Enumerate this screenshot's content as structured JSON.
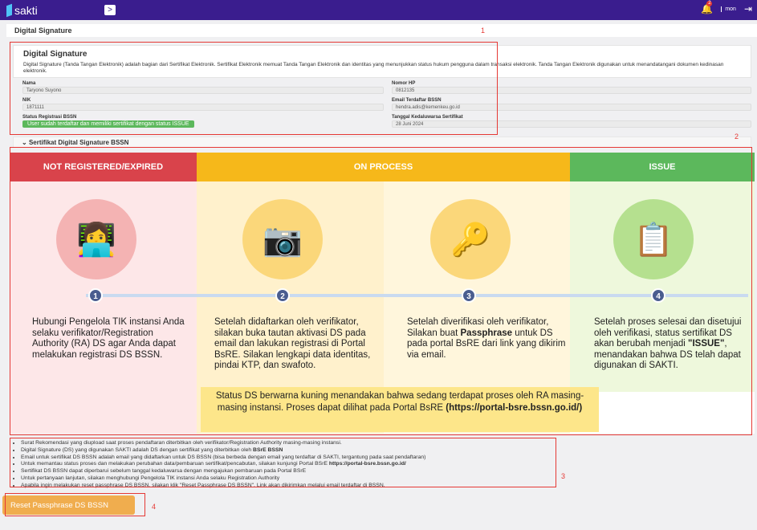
{
  "header": {
    "logo": "sakti",
    "toggle": ">",
    "notif_count": "2",
    "mon": "mon"
  },
  "breadcrumb": "Digital Signature",
  "card": {
    "title": "Digital Signature",
    "desc": "Digital Signature (Tanda Tangan Elektronik) adalah bagian dari Sertifikat Elektronik. Sertifikat Elektronik memuat Tanda Tangan Elektronik dan identitas yang menunjukkan status hukum pengguna dalam transaksi elektronik. Tanda Tangan Elektronik digunakan untuk menandatangani dokumen kedinasan elektronik."
  },
  "fields": {
    "nama": {
      "label": "Nama",
      "value": "Taryono Suyono"
    },
    "nik": {
      "label": "NIK",
      "value": "1871111"
    },
    "status": {
      "label": "Status Registrasi BSSN",
      "value": "User sudah terdaftar dan memiliki sertifikat dengan status ISSUE"
    },
    "hp": {
      "label": "Nomor HP",
      "value": "0812135"
    },
    "email": {
      "label": "Email Terdaftar BSSN",
      "value": "hendra.adis@kemenkeu.go.id"
    },
    "expiry": {
      "label": "Tanggal Kedaluwarsa Sertifikat",
      "value": "28 Juni 2024"
    }
  },
  "section_title": "Sertifikat Digital Signature BSSN",
  "info": {
    "headers": [
      "NOT REGISTERED/EXPIRED",
      "ON PROCESS",
      "ISSUE"
    ],
    "colors": {
      "red": "#d9434b",
      "yellow": "#f6b81a",
      "green": "#5cb85c"
    },
    "steps": [
      {
        "num": "1",
        "text": "Hubungi Pengelola TIK instansi Anda selaku verifikator/Registration Authority (RA) DS agar Anda dapat melakukan registrasi DS BSSN."
      },
      {
        "num": "2",
        "text": "Setelah didaftarkan oleh verifikator, silakan buka tautan aktivasi DS pada email dan lakukan registrasi di Portal BsRE. Silakan lengkapi data identitas, pindai KTP, dan swafoto."
      },
      {
        "num": "3",
        "text_a": "Setelah diverifikasi oleh verifikator, Silakan buat ",
        "text_b": "Passphrase",
        "text_c": " untuk DS pada portal BsRE dari link yang dikirim via email."
      },
      {
        "num": "4",
        "text_a": "Setelah proses selesai dan disetujui oleh verifikasi, status sertifikat DS akan berubah menjadi ",
        "text_b": "\"ISSUE\"",
        "text_c": ", menandakan bahwa DS telah dapat digunakan di SAKTI."
      }
    ],
    "note_a": "Status DS berwarna kuning menandakan bahwa sedang terdapat proses oleh RA masing-masing instansi. Proses dapat dilihat pada Portal BsRE ",
    "note_b": "(https://portal-bsre.bssn.go.id/)"
  },
  "notes": [
    {
      "a": "Surat Rekomendasi yang diupload saat proses pendaftaran diterbitkan oleh verifikator/Registration Authority masing-masing instansi.",
      "b": ""
    },
    {
      "a": "Digital Signature (DS) yang digunakan SAKTI adalah DS dengan sertifikat yang diterbitkan oleh ",
      "b": "BSrE BSSN"
    },
    {
      "a": "Email untuk sertifikat DS BSSN adalah email yang didaftarkan untuk DS BSSN (bisa berbeda dengan email yang terdaftar di SAKTI, tergantung pada saat pendaftaran)",
      "b": ""
    },
    {
      "a": "Untuk memantau status proses dan melakukan perubahan data/pembaruan sertifikat/pencabutan, silakan kunjungi Portal BSrE ",
      "b": "https://portal-bsre.bssn.go.id/"
    },
    {
      "a": "Sertifikat DS BSSN dapat diperbarui sebelum tanggal kedaluwarsa dengan mengajukan pembaruan pada Portal BSrE",
      "b": ""
    },
    {
      "a": "Untuk pertanyaan lanjutan, silakan menghubungi Pengelola TIK instansi Anda selaku Registration Authority",
      "b": ""
    },
    {
      "a": "Apabila ingin melakukan reset passphrase DS BSSN, silakan klik \"Reset Passphrase DS BSSN\". Link akan dikirimkan melalui email terdaftar di BSSN.",
      "b": ""
    }
  ],
  "reset_button": "Reset Passphrase DS BSSN",
  "annotations": [
    "1",
    "2",
    "3",
    "4"
  ]
}
